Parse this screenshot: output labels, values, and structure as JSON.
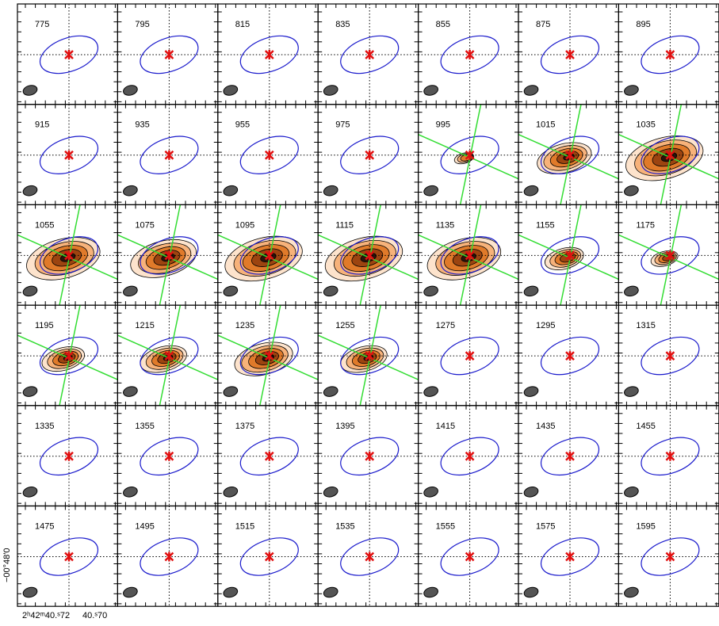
{
  "panels": [
    "775",
    "795",
    "815",
    "835",
    "855",
    "875",
    "895",
    "915",
    "935",
    "955",
    "975",
    "995",
    "1015",
    "1035",
    "1055",
    "1075",
    "1095",
    "1115",
    "1135",
    "1155",
    "1175",
    "1195",
    "1215",
    "1235",
    "1255",
    "1275",
    "1295",
    "1315",
    "1335",
    "1355",
    "1375",
    "1395",
    "1415",
    "1435",
    "1455",
    "1475",
    "1495",
    "1515",
    "1535",
    "1555",
    "1575",
    "1595"
  ],
  "axes": {
    "y_label": "−00°48′0",
    "x_label_1": "2ʰ42ᵐ40.ˢ72",
    "x_label_2": "40.ˢ70"
  }
}
